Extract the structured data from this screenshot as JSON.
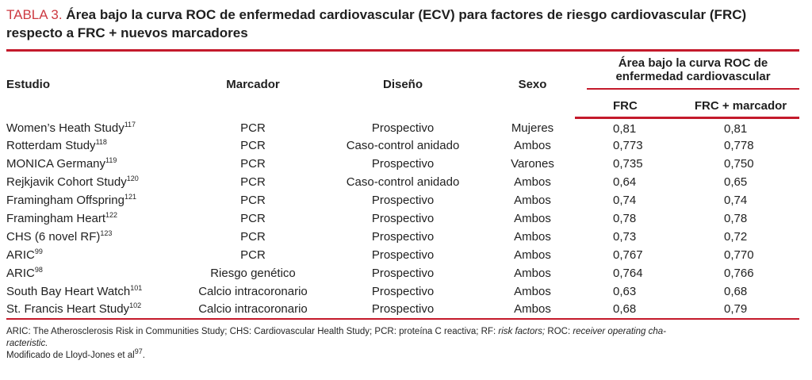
{
  "title": {
    "label": "TABLA 3.",
    "text": "Área bajo la curva ROC de enfermedad cardiovascular (ECV) para factores de riesgo cardiovascular (FRC) respecto a FRC + nuevos marcadores"
  },
  "colors": {
    "rule_red": "#c41a2b",
    "label_red": "#cd3a42",
    "text_ink": "#1f1f1f"
  },
  "table": {
    "headers": {
      "study": "Estudio",
      "marker": "Marcador",
      "design": "Diseño",
      "sex": "Sexo",
      "span_line1": "Área bajo la curva ROC de",
      "span_line2": "enfermedad cardiovascular",
      "frc": "FRC",
      "frc_marker": "FRC + marcador"
    },
    "rows": [
      {
        "study": "Women’s Heath Study",
        "ref": "117",
        "marker": "PCR",
        "design": "Prospectivo",
        "sex": "Mujeres",
        "frc": "0,81",
        "frc_marker": "0,81"
      },
      {
        "study": "Rotterdam Study",
        "ref": "118",
        "marker": "PCR",
        "design": "Caso-control anidado",
        "sex": "Ambos",
        "frc": "0,773",
        "frc_marker": "0,778"
      },
      {
        "study": "MONICA Germany",
        "ref": "119",
        "marker": "PCR",
        "design": "Prospectivo",
        "sex": "Varones",
        "frc": "0,735",
        "frc_marker": "0,750"
      },
      {
        "study": "Rejkjavik Cohort Study",
        "ref": "120",
        "marker": "PCR",
        "design": "Caso-control anidado",
        "sex": "Ambos",
        "frc": "0,64",
        "frc_marker": "0,65"
      },
      {
        "study": "Framingham Offspring",
        "ref": "121",
        "marker": "PCR",
        "design": "Prospectivo",
        "sex": "Ambos",
        "frc": "0,74",
        "frc_marker": "0,74"
      },
      {
        "study": "Framingham Heart",
        "ref": "122",
        "marker": "PCR",
        "design": "Prospectivo",
        "sex": "Ambos",
        "frc": "0,78",
        "frc_marker": "0,78"
      },
      {
        "study": "CHS (6 novel RF)",
        "ref": "123",
        "marker": "PCR",
        "design": "Prospectivo",
        "sex": "Ambos",
        "frc": "0,73",
        "frc_marker": "0,72"
      },
      {
        "study": "ARIC",
        "ref": "99",
        "marker": "PCR",
        "design": "Prospectivo",
        "sex": "Ambos",
        "frc": "0,767",
        "frc_marker": "0,770"
      },
      {
        "study": "ARIC",
        "ref": "98",
        "marker": "Riesgo genético",
        "design": "Prospectivo",
        "sex": "Ambos",
        "frc": "0,764",
        "frc_marker": "0,766"
      },
      {
        "study": "South Bay Heart Watch",
        "ref": "101",
        "marker": "Calcio intracoronario",
        "design": "Prospectivo",
        "sex": "Ambos",
        "frc": "0,63",
        "frc_marker": "0,68"
      },
      {
        "study": "St. Francis Heart Study",
        "ref": "102",
        "marker": "Calcio intracoronario",
        "design": "Prospectivo",
        "sex": "Ambos",
        "frc": "0,68",
        "frc_marker": "0,79"
      }
    ]
  },
  "footnotes": {
    "lines": [
      [
        {
          "t": "ARIC: The Atherosclerosis Risk in Communities Study; CHS: Cardiovascular Health Study; PCR: proteína C reactiva; RF: "
        },
        {
          "t": "risk factors;",
          "i": true
        },
        {
          "t": " ROC: "
        },
        {
          "t": "receiver operating cha-",
          "i": true
        }
      ],
      [
        {
          "t": "racteristic.",
          "i": true
        }
      ],
      [
        {
          "t": "Modificado de Lloyd-Jones et al"
        },
        {
          "t": "97",
          "sup": true
        },
        {
          "t": "."
        }
      ]
    ]
  }
}
